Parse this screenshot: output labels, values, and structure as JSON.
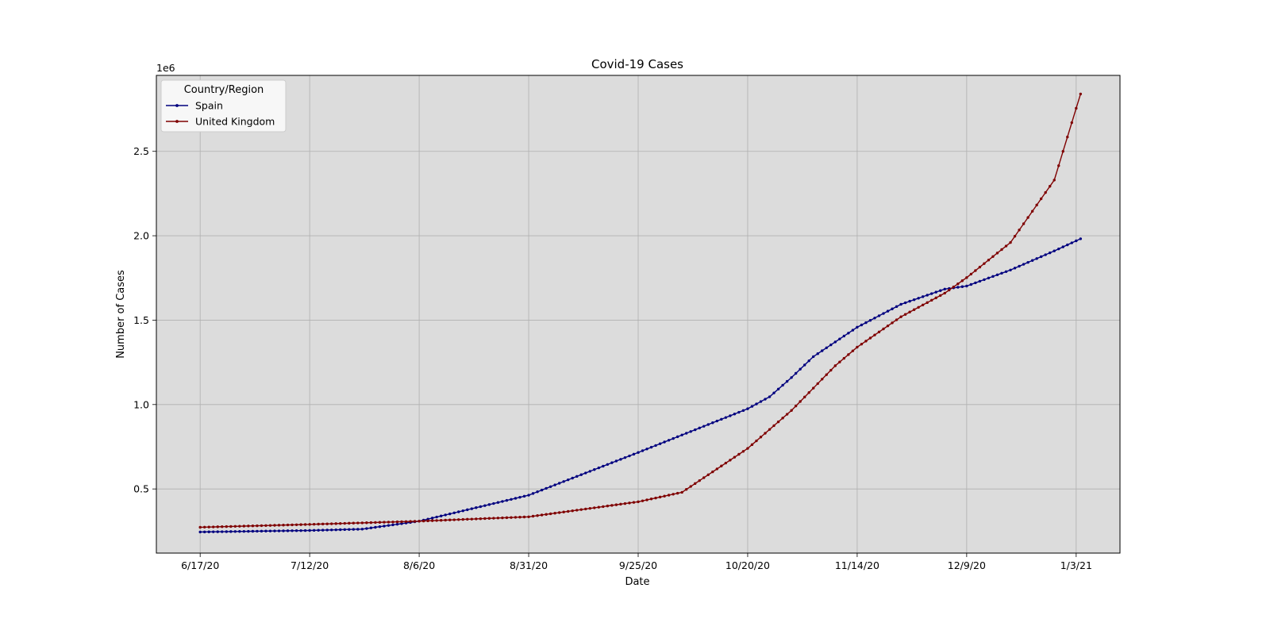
{
  "chart_data": {
    "type": "line",
    "title": "Covid-19 Cases",
    "xlabel": "Date",
    "ylabel": "Number of Cases",
    "y_scale_label": "1e6",
    "x_start_date": "2020-06-17",
    "x_end_date": "2021-01-04",
    "xlim": [
      "2020-06-07",
      "2021-01-13"
    ],
    "ylim": [
      120000,
      2950000
    ],
    "x_ticks": [
      "6/17/20",
      "7/12/20",
      "8/6/20",
      "8/31/20",
      "9/25/20",
      "10/20/20",
      "11/14/20",
      "12/9/20",
      "1/3/21"
    ],
    "y_ticks": [
      "0.5",
      "1.0",
      "1.5",
      "2.0",
      "2.5"
    ],
    "grid": true,
    "plot_background": "#dcdcdc",
    "legend": {
      "title": "Country/Region",
      "placement": "top-left"
    },
    "series": [
      {
        "name": "Spain",
        "color": "#00007f",
        "knots": [
          [
            "2020-06-17",
            245000
          ],
          [
            "2020-07-12",
            254000
          ],
          [
            "2020-07-24",
            262000
          ],
          [
            "2020-08-06",
            309000
          ],
          [
            "2020-08-31",
            463000
          ],
          [
            "2020-09-25",
            716000
          ],
          [
            "2020-10-20",
            975000
          ],
          [
            "2020-10-25",
            1046000
          ],
          [
            "2020-10-30",
            1160000
          ],
          [
            "2020-11-04",
            1284000
          ],
          [
            "2020-11-14",
            1458000
          ],
          [
            "2020-11-24",
            1594000
          ],
          [
            "2020-12-04",
            1684000
          ],
          [
            "2020-12-09",
            1702000
          ],
          [
            "2020-12-19",
            1797000
          ],
          [
            "2020-12-29",
            1910000
          ],
          [
            "2021-01-04",
            1982000
          ]
        ]
      },
      {
        "name": "United Kingdom",
        "color": "#7f0000",
        "knots": [
          [
            "2020-06-17",
            273000
          ],
          [
            "2020-07-12",
            290000
          ],
          [
            "2020-08-06",
            309000
          ],
          [
            "2020-08-31",
            335000
          ],
          [
            "2020-09-25",
            424000
          ],
          [
            "2020-10-05",
            480000
          ],
          [
            "2020-10-20",
            740000
          ],
          [
            "2020-10-30",
            965000
          ],
          [
            "2020-11-09",
            1230000
          ],
          [
            "2020-11-14",
            1340000
          ],
          [
            "2020-11-24",
            1520000
          ],
          [
            "2020-12-04",
            1660000
          ],
          [
            "2020-12-09",
            1752000
          ],
          [
            "2020-12-19",
            1960000
          ],
          [
            "2020-12-29",
            2330000
          ],
          [
            "2021-01-04",
            2840000
          ]
        ]
      }
    ]
  }
}
